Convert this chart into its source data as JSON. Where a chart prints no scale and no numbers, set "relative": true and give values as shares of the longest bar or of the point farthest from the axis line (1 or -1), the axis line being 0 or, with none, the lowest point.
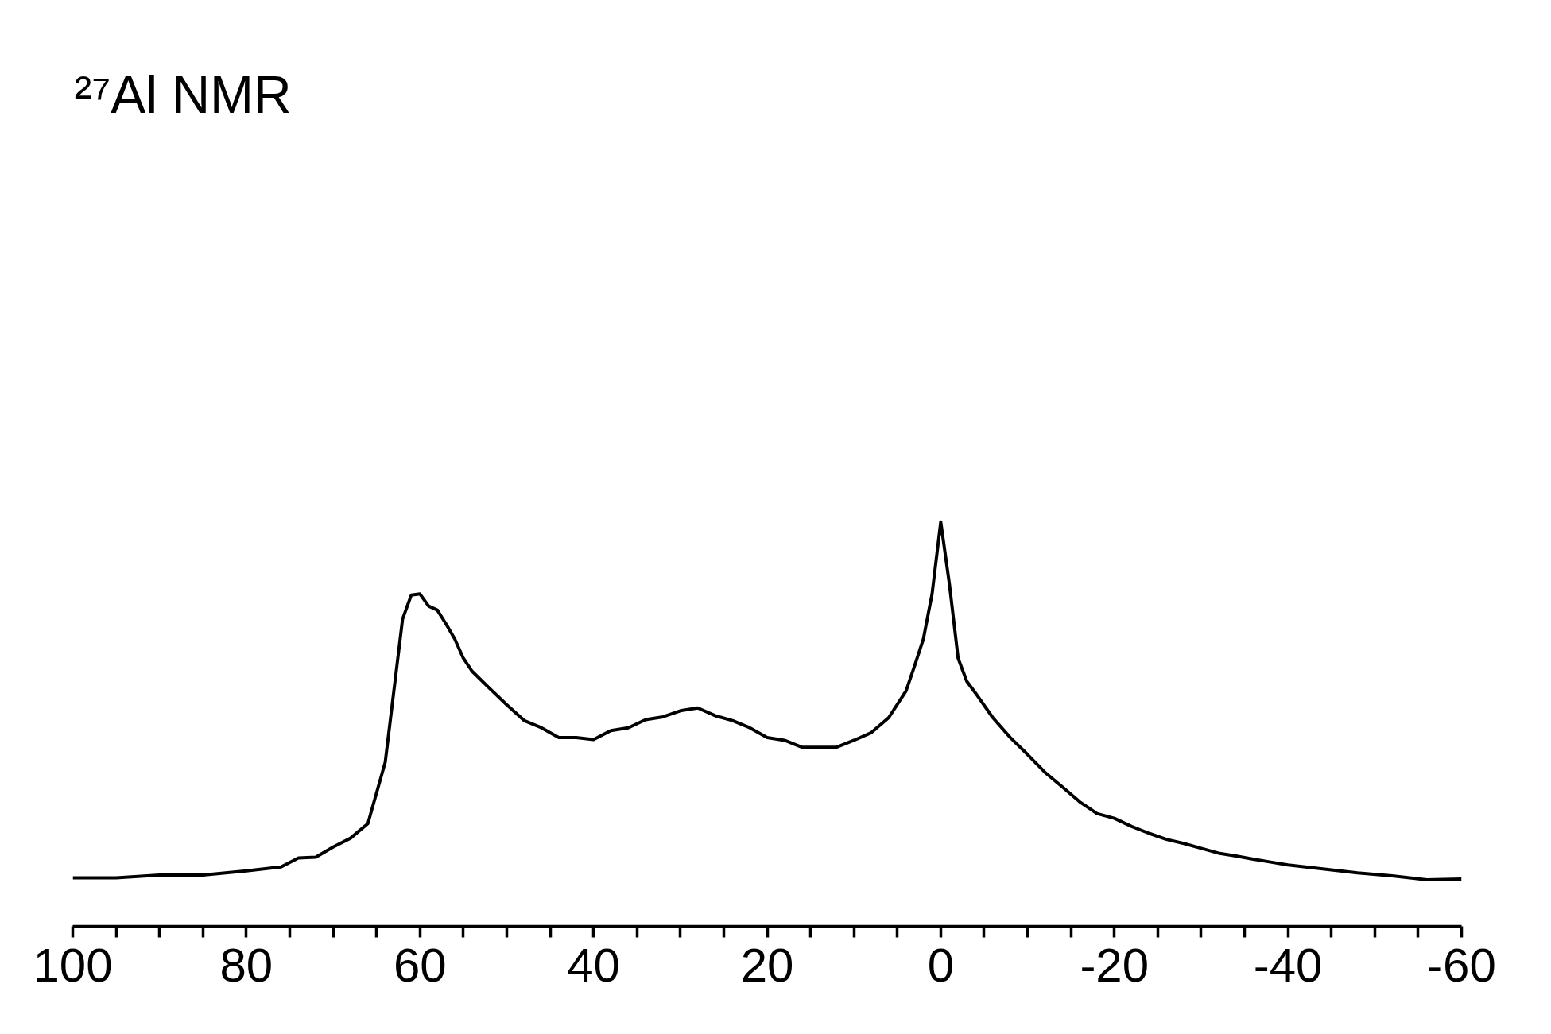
{
  "chart_data": {
    "type": "line",
    "title": "²⁷Al NMR",
    "relative": true,
    "grid": false,
    "marker": "none",
    "line_style": "solid",
    "xlim": [
      100,
      -60
    ],
    "xticks": [
      100,
      {
        "value": 95,
        "label": null
      },
      {
        "value": 90,
        "label": null
      },
      {
        "value": 85,
        "label": null
      },
      80,
      {
        "value": 75,
        "label": null
      },
      {
        "value": 70,
        "label": null
      },
      {
        "value": 65,
        "label": null
      },
      60,
      {
        "value": 55,
        "label": null
      },
      {
        "value": 50,
        "label": null
      },
      {
        "value": 45,
        "label": null
      },
      40,
      {
        "value": 35,
        "label": null
      },
      {
        "value": 30,
        "label": null
      },
      {
        "value": 25,
        "label": null
      },
      20,
      {
        "value": 15,
        "label": null
      },
      {
        "value": 10,
        "label": null
      },
      {
        "value": 5,
        "label": null
      },
      0,
      {
        "value": -5,
        "label": null
      },
      {
        "value": -10,
        "label": null
      },
      {
        "value": -15,
        "label": null
      },
      -20,
      {
        "value": -25,
        "label": null
      },
      {
        "value": -30,
        "label": null
      },
      {
        "value": -35,
        "label": null
      },
      -40,
      {
        "value": -45,
        "label": null
      },
      {
        "value": -50,
        "label": null
      },
      {
        "value": -55,
        "label": null
      },
      -60
    ],
    "x": [
      100,
      95,
      90,
      85,
      80,
      76,
      74,
      72,
      70,
      68,
      66,
      64,
      62,
      61,
      60,
      59,
      58,
      57,
      56,
      55,
      54,
      52,
      50,
      48,
      46,
      44,
      42,
      40,
      38,
      36,
      34,
      32,
      30,
      28,
      26,
      24,
      22,
      20,
      18,
      16,
      14,
      12,
      10,
      8,
      6,
      4,
      3,
      2,
      1,
      0,
      -1,
      -2,
      -3,
      -4,
      -6,
      -8,
      -10,
      -12,
      -14,
      -16,
      -18,
      -20,
      -22,
      -24,
      -26,
      -28,
      -30,
      -32,
      -34,
      -36,
      -38,
      -40,
      -44,
      -48,
      -52,
      -56,
      -60
    ],
    "series": [
      {
        "color": "#000000",
        "values": [
          0.12,
          0.12,
          0.127,
          0.127,
          0.137,
          0.147,
          0.169,
          0.171,
          0.196,
          0.218,
          0.254,
          0.406,
          0.76,
          0.819,
          0.822,
          0.792,
          0.782,
          0.748,
          0.711,
          0.663,
          0.631,
          0.589,
          0.548,
          0.509,
          0.491,
          0.467,
          0.467,
          0.462,
          0.484,
          0.491,
          0.511,
          0.518,
          0.533,
          0.54,
          0.521,
          0.509,
          0.491,
          0.467,
          0.46,
          0.443,
          0.443,
          0.443,
          0.46,
          0.479,
          0.516,
          0.582,
          0.645,
          0.711,
          0.822,
          1,
          0.846,
          0.663,
          0.606,
          0.577,
          0.516,
          0.467,
          0.425,
          0.381,
          0.345,
          0.308,
          0.279,
          0.267,
          0.247,
          0.23,
          0.215,
          0.205,
          0.193,
          0.181,
          0.174,
          0.166,
          0.159,
          0.152,
          0.142,
          0.132,
          0.125,
          0.115,
          0.117
        ]
      }
    ]
  }
}
